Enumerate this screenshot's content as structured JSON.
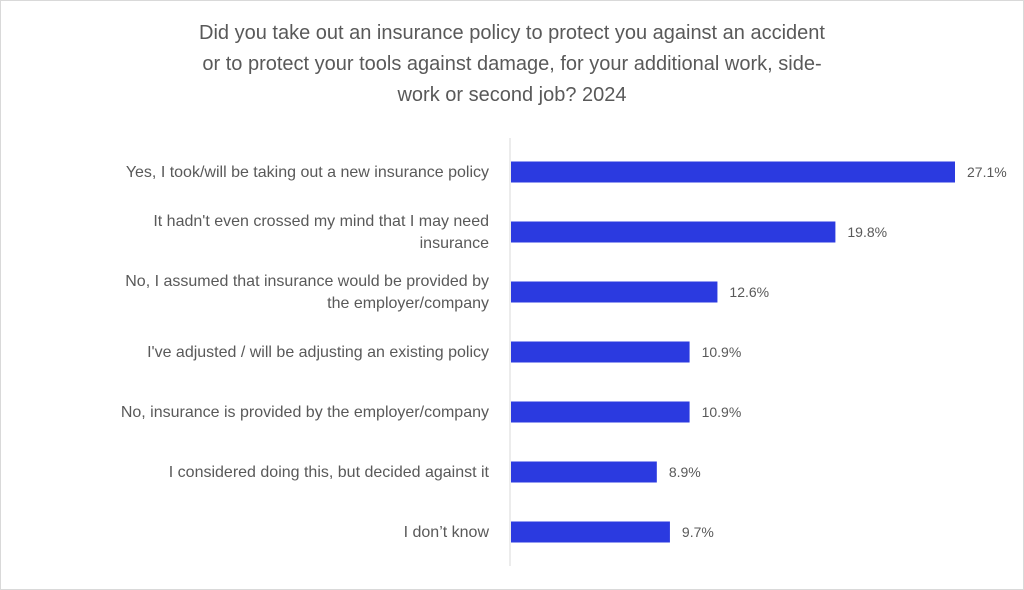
{
  "chart_data": {
    "type": "bar",
    "orientation": "horizontal",
    "title_lines": [
      "Did you take out an insurance policy to protect you against an accident",
      "or to protect your tools against damage, for your additional work, side-",
      "work or second job? 2024"
    ],
    "categories": [
      [
        "Yes, I took/will be taking out a new insurance policy"
      ],
      [
        "It hadn't even crossed my mind that I may need",
        "insurance"
      ],
      [
        "No, I assumed that insurance would be provided by",
        "the employer/company"
      ],
      [
        "I've adjusted / will be adjusting an existing policy"
      ],
      [
        "No, insurance is provided by the employer/company"
      ],
      [
        "I considered doing this, but decided against it"
      ],
      [
        "I don’t know"
      ]
    ],
    "values": [
      27.1,
      19.8,
      12.6,
      10.9,
      10.9,
      8.9,
      9.7
    ],
    "value_labels": [
      "27.1%",
      "19.8%",
      "12.6%",
      "10.9%",
      "10.9%",
      "8.9%",
      "9.7%"
    ],
    "xlim": [
      0,
      27.1
    ],
    "bar_color": "#2b3ae0",
    "axis_color": "#d9d9d9",
    "grid": false,
    "legend": "none"
  }
}
